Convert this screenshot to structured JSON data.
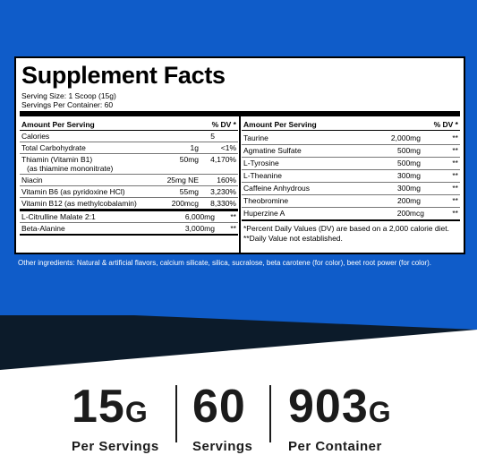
{
  "colors": {
    "blue": "#0f5cc9",
    "navy": "#0c1b2a",
    "white": "#ffffff"
  },
  "label": {
    "title": "Supplement Facts",
    "serving_size": "Serving Size: 1 Scoop (15g)",
    "servings_per_container": "Servings Per Container: 60",
    "header_left": "Amount Per Serving",
    "header_dv": "% DV *"
  },
  "left_rows": [
    {
      "name": "Calories",
      "amount": "5",
      "dv": ""
    },
    {
      "name": "Total Carbohydrate",
      "amount": "1g",
      "dv": "<1%"
    },
    {
      "name": "Thiamin (Vitamin B1)",
      "sub": "(as thiamine mononitrate)",
      "amount": "50mg",
      "dv": "4,170%"
    },
    {
      "name": "Niacin",
      "amount": "25mg NE",
      "dv": "160%"
    },
    {
      "name": "Vitamin B6 (as pyridoxine HCl)",
      "amount": "55mg",
      "dv": "3,230%"
    },
    {
      "name": "Vitamin B12 (as methylcobalamin)",
      "amount": "200mcg",
      "dv": "8,330%"
    },
    {
      "name": "L-Citrulline Malate 2:1",
      "amount": "6,000mg",
      "dv": "**"
    },
    {
      "name": "Beta-Alanine",
      "amount": "3,000mg",
      "dv": "**"
    }
  ],
  "right_rows": [
    {
      "name": "Taurine",
      "amount": "2,000mg",
      "dv": "**"
    },
    {
      "name": "Agmatine Sulfate",
      "amount": "500mg",
      "dv": "**"
    },
    {
      "name": "L-Tyrosine",
      "amount": "500mg",
      "dv": "**"
    },
    {
      "name": "L-Theanine",
      "amount": "300mg",
      "dv": "**"
    },
    {
      "name": "Caffeine Anhydrous",
      "amount": "300mg",
      "dv": "**"
    },
    {
      "name": "Theobromine",
      "amount": "200mg",
      "dv": "**"
    },
    {
      "name": "Huperzine A",
      "amount": "200mcg",
      "dv": "**"
    }
  ],
  "footnotes": {
    "dv_note": "*Percent Daily Values (DV) are based on a 2,000 calorie diet.",
    "not_established": "**Daily Value not established."
  },
  "other_ingredients": "Other ingredients: Natural & artificial flavors, calcium silicate, silica, sucralose, beta carotene (for color), beet root power (for color).",
  "stats": [
    {
      "number": "15",
      "unit": "G",
      "label": "Per Servings"
    },
    {
      "number": "60",
      "unit": "",
      "label": "Servings"
    },
    {
      "number": "903",
      "unit": "G",
      "label": "Per Container"
    }
  ]
}
